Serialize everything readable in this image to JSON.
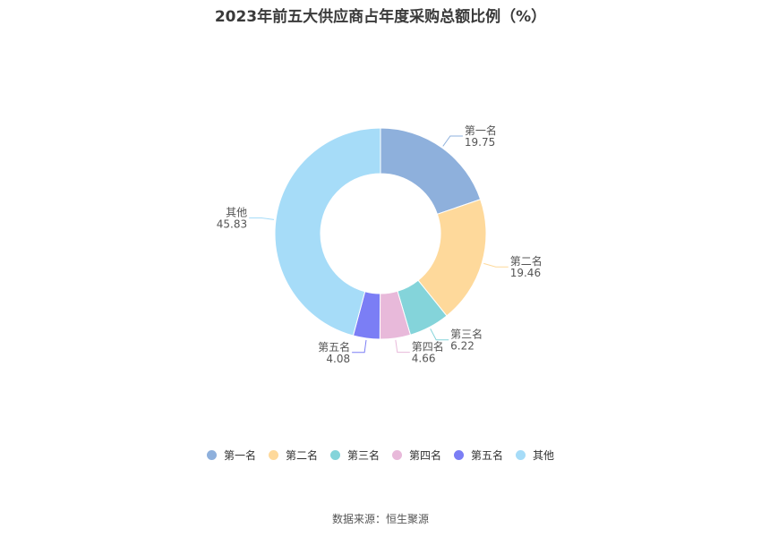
{
  "chart_data": {
    "type": "pie",
    "title": "2023年前五大供应商占年度采购总额比例（%）",
    "categories": [
      "第一名",
      "第二名",
      "第三名",
      "第四名",
      "第五名",
      "其他"
    ],
    "values": [
      19.75,
      19.46,
      6.22,
      4.66,
      4.08,
      45.83
    ],
    "value_labels": [
      "19.75",
      "19.46",
      "6.22",
      "4.66",
      "4.08",
      "45.83"
    ],
    "colors": [
      "#8eb0dc",
      "#fed99b",
      "#84d4da",
      "#e8b9da",
      "#7b7ef5",
      "#a6dcf8"
    ],
    "donut": true,
    "legend_position": "bottom"
  },
  "source": "数据来源：恒生聚源"
}
